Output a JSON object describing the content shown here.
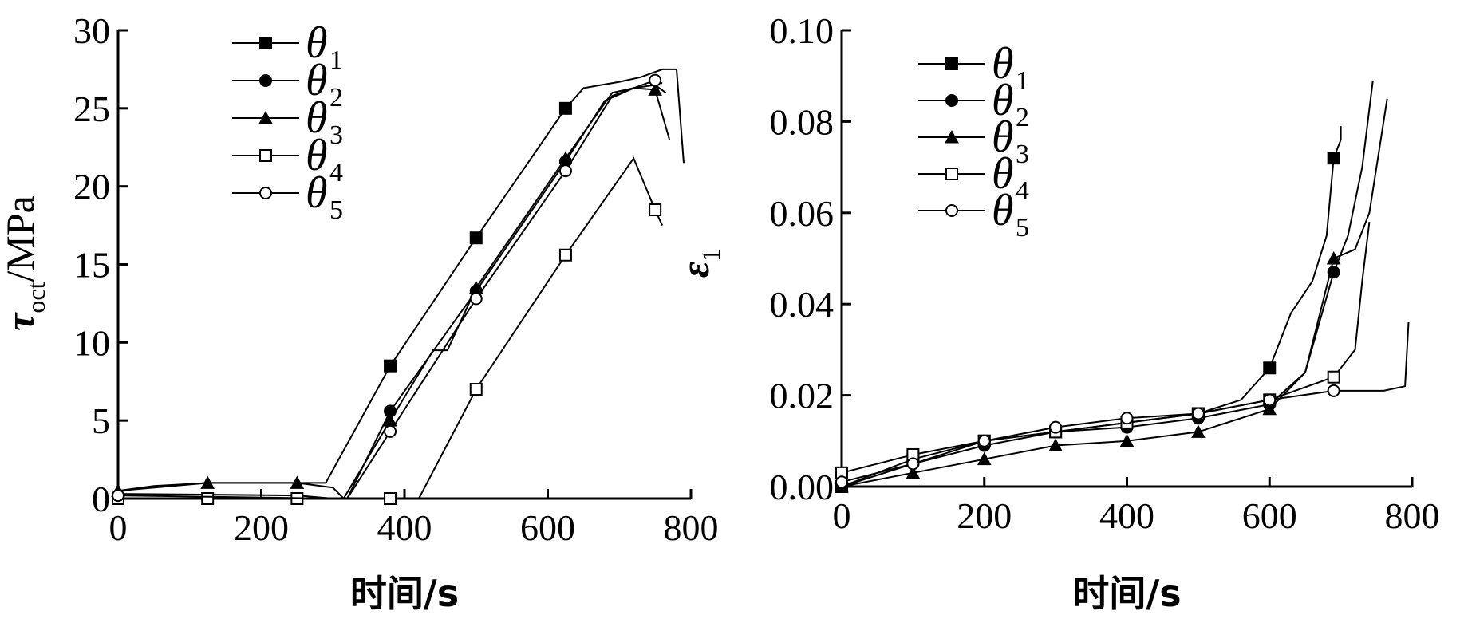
{
  "chart_data": [
    {
      "type": "line",
      "title": "",
      "xlabel": "时间/s",
      "ylabel_main": "τ",
      "ylabel_sub": "oct",
      "ylabel_unit": "/MPa",
      "xlim": [
        0,
        800
      ],
      "ylim": [
        0,
        30
      ],
      "xticks": [
        "0",
        "200",
        "400",
        "600",
        "800"
      ],
      "yticks": [
        "0",
        "5",
        "10",
        "15",
        "20",
        "25",
        "30"
      ],
      "grid": false,
      "legend_position": "top-left",
      "series": [
        {
          "name": "θ",
          "sub": "1",
          "marker": "square-filled",
          "x": [
            0,
            50,
            125,
            250,
            290,
            380,
            500,
            625,
            650,
            700,
            730,
            760,
            780,
            790
          ],
          "y": [
            0.5,
            0.8,
            1.0,
            1.0,
            1.0,
            8.5,
            16.7,
            25.0,
            26.3,
            26.7,
            27.0,
            27.5,
            27.5,
            21.5
          ],
          "markers_x": [
            380,
            500,
            625
          ],
          "markers_y": [
            8.5,
            16.7,
            25.0
          ]
        },
        {
          "name": "θ",
          "sub": "2",
          "marker": "circle-filled",
          "x": [
            0,
            250,
            300,
            320,
            380,
            500,
            625,
            680,
            720,
            750,
            765
          ],
          "y": [
            0.3,
            0.2,
            0.0,
            0.0,
            5.6,
            13.3,
            21.6,
            25.5,
            26.3,
            26.5,
            26.0
          ],
          "markers_x": [
            380,
            500,
            625
          ],
          "markers_y": [
            5.6,
            13.3,
            21.6
          ]
        },
        {
          "name": "θ",
          "sub": "3",
          "marker": "triangle-filled",
          "x": [
            0,
            125,
            250,
            300,
            315,
            380,
            440,
            460,
            500,
            625,
            690,
            720,
            750,
            770
          ],
          "y": [
            0.5,
            1.0,
            1.0,
            0.7,
            0.0,
            5.0,
            9.5,
            9.5,
            13.5,
            21.8,
            26.0,
            26.3,
            26.2,
            23.0
          ],
          "markers_x": [
            0,
            125,
            250,
            380,
            500,
            625,
            750
          ],
          "markers_y": [
            0.5,
            1.0,
            1.0,
            5.0,
            13.5,
            21.8,
            26.2
          ]
        },
        {
          "name": "θ",
          "sub": "4",
          "marker": "square-open",
          "x": [
            0,
            125,
            250,
            380,
            420,
            500,
            625,
            720,
            750,
            760
          ],
          "y": [
            0.0,
            0.0,
            0.0,
            0.0,
            0.0,
            7.0,
            15.6,
            21.8,
            18.5,
            17.5
          ],
          "markers_x": [
            0,
            125,
            250,
            380,
            500,
            625,
            750
          ],
          "markers_y": [
            0.0,
            0.0,
            0.0,
            0.0,
            7.0,
            15.6,
            18.5
          ]
        },
        {
          "name": "θ",
          "sub": "5",
          "marker": "circle-open",
          "x": [
            0,
            300,
            320,
            380,
            500,
            625,
            690,
            720,
            750,
            760
          ],
          "y": [
            0.2,
            0.0,
            0.0,
            4.3,
            12.8,
            21.0,
            25.8,
            26.3,
            26.8,
            26.6
          ],
          "markers_x": [
            0,
            380,
            500,
            625,
            750
          ],
          "markers_y": [
            0.2,
            4.3,
            12.8,
            21.0,
            26.8
          ]
        }
      ]
    },
    {
      "type": "line",
      "title": "",
      "xlabel": "时间/s",
      "ylabel_main": "ε",
      "ylabel_sub": "1",
      "ylabel_unit": "",
      "xlim": [
        0,
        800
      ],
      "ylim": [
        0,
        0.1
      ],
      "xticks": [
        "0",
        "200",
        "400",
        "600",
        "800"
      ],
      "yticks": [
        "0.00",
        "0.02",
        "0.04",
        "0.06",
        "0.08",
        "0.10"
      ],
      "grid": false,
      "legend_position": "top-left",
      "series": [
        {
          "name": "θ",
          "sub": "1",
          "marker": "square-filled",
          "x": [
            0,
            100,
            200,
            300,
            400,
            500,
            560,
            600,
            630,
            660,
            680,
            690,
            700,
            700
          ],
          "y": [
            0.0,
            0.006,
            0.01,
            0.012,
            0.014,
            0.016,
            0.019,
            0.026,
            0.038,
            0.045,
            0.055,
            0.072,
            0.076,
            0.079
          ],
          "markers_x": [
            0,
            100,
            200,
            300,
            400,
            500,
            600,
            690
          ],
          "markers_y": [
            0.0,
            0.006,
            0.01,
            0.012,
            0.014,
            0.016,
            0.026,
            0.072
          ]
        },
        {
          "name": "θ",
          "sub": "2",
          "marker": "circle-filled",
          "x": [
            0,
            100,
            200,
            300,
            400,
            500,
            600,
            650,
            690,
            710,
            730,
            745
          ],
          "y": [
            0.0,
            0.005,
            0.009,
            0.012,
            0.013,
            0.015,
            0.018,
            0.025,
            0.047,
            0.055,
            0.07,
            0.089
          ],
          "markers_x": [
            0,
            100,
            200,
            300,
            400,
            500,
            600,
            690
          ],
          "markers_y": [
            0.0,
            0.005,
            0.009,
            0.012,
            0.013,
            0.015,
            0.018,
            0.047
          ]
        },
        {
          "name": "θ",
          "sub": "3",
          "marker": "triangle-filled",
          "x": [
            0,
            100,
            200,
            300,
            400,
            500,
            600,
            650,
            690,
            720,
            740,
            755,
            765
          ],
          "y": [
            0.0,
            0.003,
            0.006,
            0.009,
            0.01,
            0.012,
            0.017,
            0.025,
            0.05,
            0.052,
            0.06,
            0.075,
            0.085
          ],
          "markers_x": [
            0,
            100,
            200,
            300,
            400,
            500,
            600,
            690
          ],
          "markers_y": [
            0.0,
            0.003,
            0.006,
            0.009,
            0.01,
            0.012,
            0.017,
            0.05
          ]
        },
        {
          "name": "θ",
          "sub": "4",
          "marker": "square-open",
          "x": [
            0,
            100,
            200,
            300,
            400,
            500,
            600,
            690,
            720,
            730,
            740
          ],
          "y": [
            0.003,
            0.007,
            0.01,
            0.012,
            0.014,
            0.016,
            0.019,
            0.024,
            0.03,
            0.045,
            0.058
          ],
          "markers_x": [
            0,
            100,
            200,
            300,
            400,
            500,
            600,
            690
          ],
          "markers_y": [
            0.003,
            0.007,
            0.01,
            0.012,
            0.014,
            0.016,
            0.019,
            0.024
          ]
        },
        {
          "name": "θ",
          "sub": "5",
          "marker": "circle-open",
          "x": [
            0,
            100,
            200,
            300,
            400,
            500,
            600,
            690,
            760,
            790,
            795
          ],
          "y": [
            0.001,
            0.005,
            0.01,
            0.013,
            0.015,
            0.016,
            0.019,
            0.021,
            0.021,
            0.022,
            0.036
          ],
          "markers_x": [
            0,
            100,
            200,
            300,
            400,
            500,
            600,
            690
          ],
          "markers_y": [
            0.001,
            0.005,
            0.01,
            0.013,
            0.015,
            0.016,
            0.019,
            0.021
          ]
        }
      ]
    }
  ]
}
